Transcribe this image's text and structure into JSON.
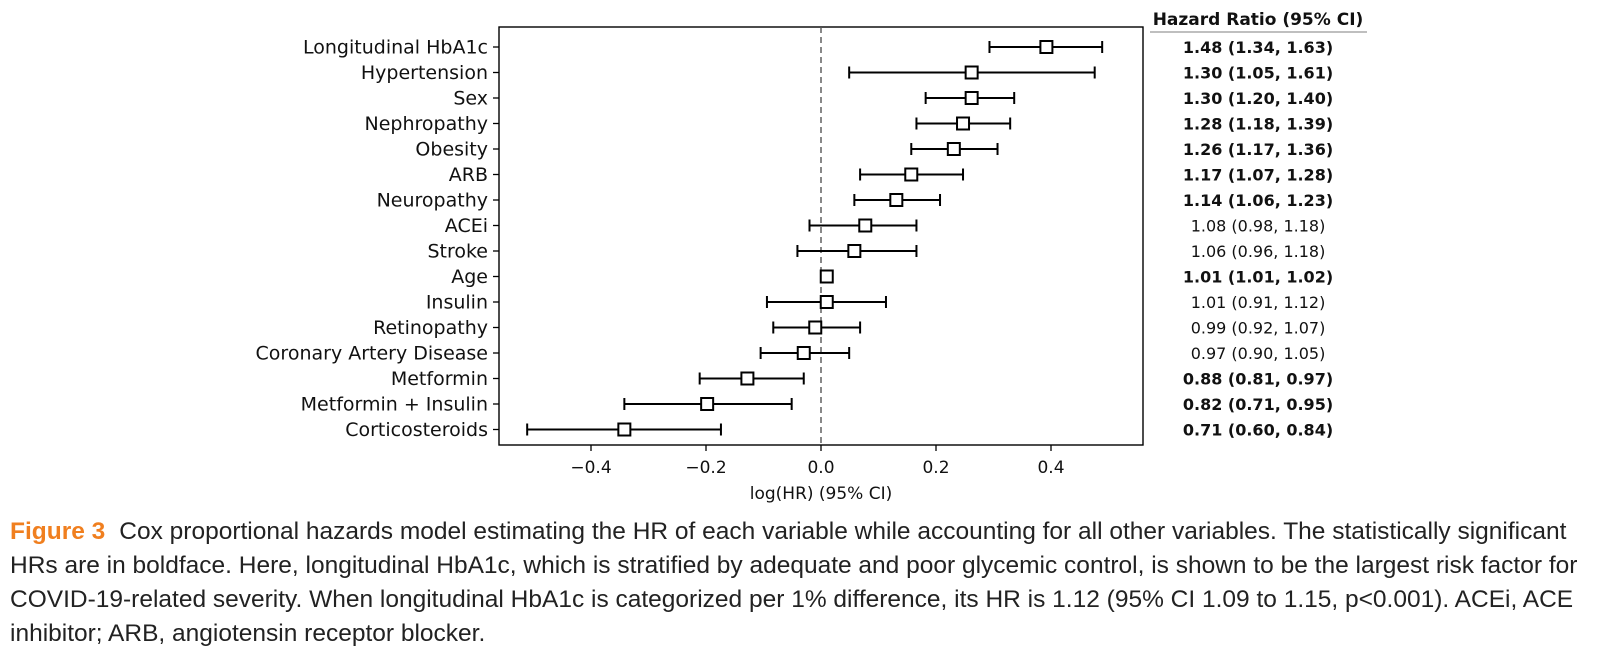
{
  "chart_data": {
    "type": "forest",
    "xlabel": "log(HR) (95% CI)",
    "xlim": [
      -0.56,
      0.56
    ],
    "xticks": [
      -0.4,
      -0.2,
      0.0,
      0.2,
      0.4
    ],
    "xtick_labels": [
      "−0.4",
      "−0.2",
      "0.0",
      "0.2",
      "0.4"
    ],
    "reference_line": 0.0,
    "table_header": "Hazard Ratio (95% CI)",
    "rows": [
      {
        "label": "Longitudinal HbA1c",
        "loghr": 0.392,
        "low": 0.293,
        "high": 0.489,
        "hr_text": "1.48 (1.34, 1.63)",
        "significant": true
      },
      {
        "label": "Hypertension",
        "loghr": 0.262,
        "low": 0.049,
        "high": 0.476,
        "hr_text": "1.30 (1.05, 1.61)",
        "significant": true
      },
      {
        "label": "Sex",
        "loghr": 0.262,
        "low": 0.182,
        "high": 0.336,
        "hr_text": "1.30 (1.20, 1.40)",
        "significant": true
      },
      {
        "label": "Nephropathy",
        "loghr": 0.247,
        "low": 0.166,
        "high": 0.329,
        "hr_text": "1.28 (1.18, 1.39)",
        "significant": true
      },
      {
        "label": "Obesity",
        "loghr": 0.231,
        "low": 0.157,
        "high": 0.307,
        "hr_text": "1.26 (1.17, 1.36)",
        "significant": true
      },
      {
        "label": "ARB",
        "loghr": 0.157,
        "low": 0.068,
        "high": 0.247,
        "hr_text": "1.17 (1.07, 1.28)",
        "significant": true
      },
      {
        "label": "Neuropathy",
        "loghr": 0.131,
        "low": 0.058,
        "high": 0.207,
        "hr_text": "1.14 (1.06, 1.23)",
        "significant": true
      },
      {
        "label": "ACEi",
        "loghr": 0.077,
        "low": -0.02,
        "high": 0.166,
        "hr_text": "1.08 (0.98, 1.18)",
        "significant": false
      },
      {
        "label": "Stroke",
        "loghr": 0.058,
        "low": -0.041,
        "high": 0.166,
        "hr_text": "1.06 (0.96, 1.18)",
        "significant": false
      },
      {
        "label": "Age",
        "loghr": 0.01,
        "low": 0.01,
        "high": 0.02,
        "hr_text": "1.01 (1.01, 1.02)",
        "significant": true
      },
      {
        "label": "Insulin",
        "loghr": 0.01,
        "low": -0.094,
        "high": 0.113,
        "hr_text": "1.01 (0.91, 1.12)",
        "significant": false
      },
      {
        "label": "Retinopathy",
        "loghr": -0.01,
        "low": -0.083,
        "high": 0.068,
        "hr_text": "0.99 (0.92, 1.07)",
        "significant": false
      },
      {
        "label": "Coronary Artery Disease",
        "loghr": -0.03,
        "low": -0.105,
        "high": 0.049,
        "hr_text": "0.97 (0.90, 1.05)",
        "significant": false
      },
      {
        "label": "Metformin",
        "loghr": -0.128,
        "low": -0.211,
        "high": -0.03,
        "hr_text": "0.88 (0.81, 0.97)",
        "significant": true
      },
      {
        "label": "Metformin + Insulin",
        "loghr": -0.198,
        "low": -0.342,
        "high": -0.051,
        "hr_text": "0.82 (0.71, 0.95)",
        "significant": true
      },
      {
        "label": "Corticosteroids",
        "loghr": -0.342,
        "low": -0.511,
        "high": -0.174,
        "hr_text": "0.71 (0.60, 0.84)",
        "significant": true
      }
    ]
  },
  "caption": {
    "label": "Figure 3",
    "text": "Cox proportional hazards model estimating the HR of each variable while accounting for all other variables. The statistically significant HRs are in boldface. Here, longitudinal HbA1c, which is stratified by adequate and poor glycemic control, is shown to be the largest risk factor for COVID-19-related severity. When longitudinal HbA1c is categorized per 1% difference, its HR is 1.12 (95% CI 1.09 to 1.15, p<0.001). ACEi, ACE inhibitor; ARB, angiotensin receptor blocker."
  }
}
